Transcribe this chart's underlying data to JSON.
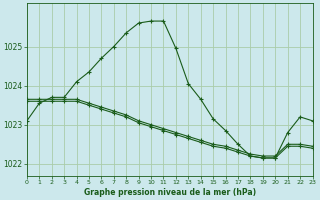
{
  "title": "Graphe pression niveau de la mer (hPa)",
  "background_color": "#cce8ec",
  "grid_color": "#aaccaa",
  "line_color": "#1a5c1a",
  "xlim": [
    0,
    23
  ],
  "ylim": [
    1021.7,
    1026.1
  ],
  "yticks": [
    1022,
    1023,
    1024,
    1025
  ],
  "xticks": [
    0,
    1,
    2,
    3,
    4,
    5,
    6,
    7,
    8,
    9,
    10,
    11,
    12,
    13,
    14,
    15,
    16,
    17,
    18,
    19,
    20,
    21,
    22,
    23
  ],
  "line1_x": [
    0,
    1,
    2,
    3,
    4,
    5,
    6,
    7,
    8,
    9,
    10,
    11,
    12,
    13,
    14,
    15,
    16,
    17,
    18,
    19,
    20,
    21,
    22,
    23
  ],
  "line1_y": [
    1023.1,
    1023.55,
    1023.7,
    1023.7,
    1024.1,
    1024.35,
    1024.7,
    1025.0,
    1025.35,
    1025.6,
    1025.65,
    1025.65,
    1024.95,
    1024.05,
    1023.65,
    1023.15,
    1022.85,
    1022.5,
    1022.2,
    1022.15,
    1022.15,
    1022.8,
    1023.2,
    1023.1
  ],
  "line2_x": [
    0,
    1,
    2,
    3,
    4,
    5,
    6,
    7,
    8,
    9,
    10,
    11,
    12,
    13,
    14,
    15,
    16,
    17,
    18,
    19,
    20,
    21,
    22,
    23
  ],
  "line2_y": [
    1023.65,
    1023.65,
    1023.65,
    1023.65,
    1023.65,
    1023.55,
    1023.45,
    1023.35,
    1023.25,
    1023.1,
    1023.0,
    1022.9,
    1022.8,
    1022.7,
    1022.6,
    1022.5,
    1022.45,
    1022.35,
    1022.25,
    1022.2,
    1022.2,
    1022.5,
    1022.5,
    1022.45
  ],
  "line3_x": [
    0,
    1,
    2,
    3,
    4,
    5,
    6,
    7,
    8,
    9,
    10,
    11,
    12,
    13,
    14,
    15,
    16,
    17,
    18,
    19,
    20,
    21,
    22,
    23
  ],
  "line3_y": [
    1023.6,
    1023.6,
    1023.6,
    1023.6,
    1023.6,
    1023.5,
    1023.4,
    1023.3,
    1023.2,
    1023.05,
    1022.95,
    1022.85,
    1022.75,
    1022.65,
    1022.55,
    1022.45,
    1022.4,
    1022.3,
    1022.2,
    1022.15,
    1022.15,
    1022.45,
    1022.45,
    1022.4
  ]
}
